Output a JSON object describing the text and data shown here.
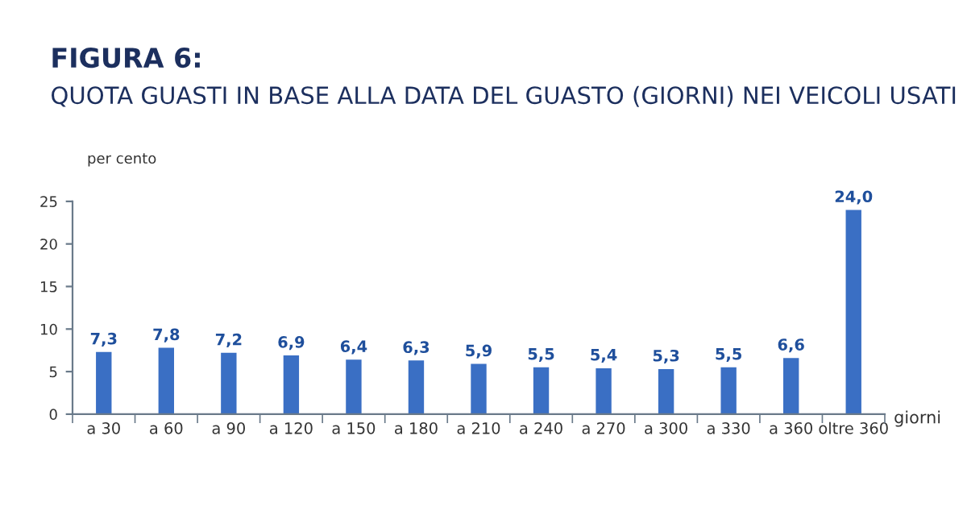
{
  "chart_data": {
    "type": "bar",
    "title": "FIGURA 6:",
    "subtitle": "QUOTA GUASTI IN BASE ALLA DATA DEL GUASTO (GIORNI) NEI VEICOLI USATI",
    "ylabel": "per cento",
    "xlabel": "giorni",
    "categories": [
      "a 30",
      "a 60",
      "a 90",
      "a 120",
      "a 150",
      "a 180",
      "a 210",
      "a 240",
      "a 270",
      "a 300",
      "a 330",
      "a 360",
      "oltre 360"
    ],
    "values": [
      7.3,
      7.8,
      7.2,
      6.9,
      6.4,
      6.3,
      5.9,
      5.5,
      5.4,
      5.3,
      5.5,
      6.6,
      24.0
    ],
    "value_labels": [
      "7,3",
      "7,8",
      "7,2",
      "6,9",
      "6,4",
      "6,3",
      "5,9",
      "5,5",
      "5,4",
      "5,3",
      "5,5",
      "6,6",
      "24,0"
    ],
    "color": "#3a6fc4",
    "ylim": [
      0,
      25
    ],
    "yticks": [
      0,
      5,
      10,
      15,
      20,
      25
    ],
    "grid": false,
    "legend": false
  }
}
